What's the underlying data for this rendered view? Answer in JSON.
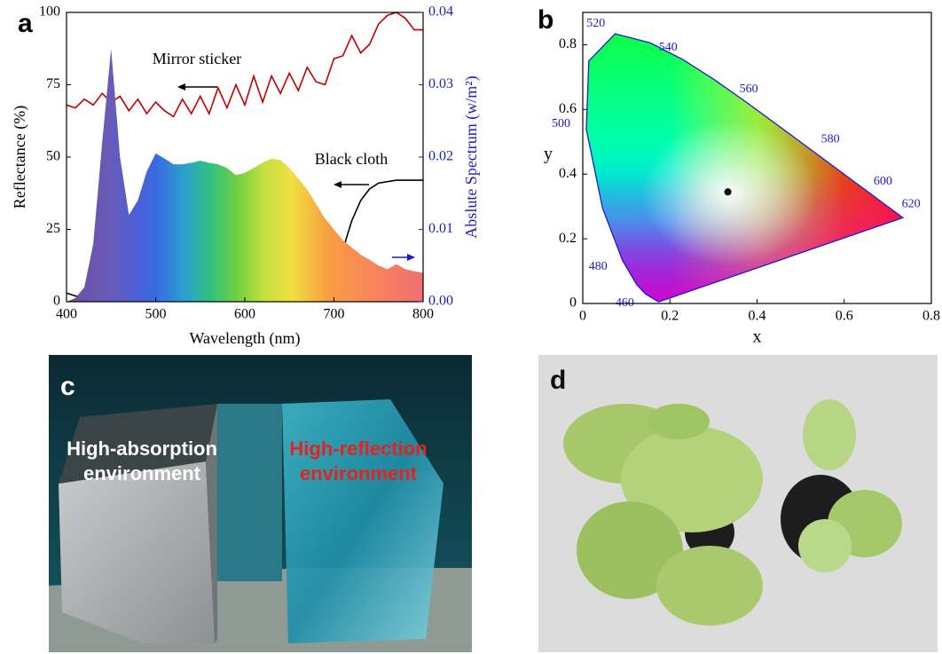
{
  "chart_data": [
    {
      "type": "line",
      "panel_label": "a",
      "x": [
        400,
        410,
        420,
        430,
        440,
        450,
        460,
        470,
        480,
        490,
        500,
        510,
        520,
        530,
        540,
        550,
        560,
        570,
        580,
        590,
        600,
        610,
        620,
        630,
        640,
        650,
        660,
        670,
        680,
        690,
        700,
        710,
        720,
        730,
        740,
        750,
        760,
        770,
        780,
        790,
        800
      ],
      "xlim": [
        400,
        800
      ],
      "xticks": [
        400,
        500,
        600,
        700,
        800
      ],
      "ylim": [
        0,
        100
      ],
      "yticks": [
        0,
        25,
        50,
        75,
        100
      ],
      "y2lim": [
        0,
        0.04
      ],
      "y2ticks": [
        {
          "value": 0,
          "label": "0.00"
        },
        0.01,
        0.02,
        0.03,
        0.04
      ],
      "xlabel": "Wavelength (nm)",
      "ylabel": "Reflectance (%)",
      "y2label": "Abslute Spectrum (w/m²)",
      "series": [
        {
          "name": "Mirror sticker",
          "color": "#c00000",
          "values": [
            68,
            67,
            70,
            68,
            72,
            69,
            71,
            66,
            70,
            65,
            69,
            66,
            64,
            70,
            65,
            71,
            65,
            74,
            67,
            75,
            68,
            78,
            69,
            78,
            72,
            79,
            73,
            81,
            76,
            75,
            84,
            85,
            92,
            86,
            89,
            96,
            99,
            100,
            98,
            94,
            94
          ]
        },
        {
          "name": "Black cloth",
          "color": "#000000",
          "values": [
            3,
            2,
            1.5,
            1.5,
            1.5,
            1.5,
            1.5,
            1.5,
            1.5,
            1.5,
            1.5,
            1.5,
            1.5,
            1.5,
            1.5,
            1.5,
            1.5,
            1.5,
            1.5,
            1.5,
            1.5,
            1.5,
            1.5,
            1.5,
            1.5,
            1.5,
            1.6,
            1.8,
            2.5,
            5,
            10,
            18,
            28,
            35,
            39,
            41,
            41.5,
            42,
            42,
            42,
            42
          ]
        },
        {
          "axis": "y2",
          "kind": "area",
          "values": [
            0,
            0.0005,
            0.002,
            0.008,
            0.022,
            0.035,
            0.02,
            0.012,
            0.014,
            0.018,
            0.0205,
            0.0198,
            0.019,
            0.019,
            0.0192,
            0.0195,
            0.0192,
            0.019,
            0.0185,
            0.0175,
            0.0178,
            0.0185,
            0.0192,
            0.0198,
            0.0196,
            0.0185,
            0.017,
            0.0155,
            0.0135,
            0.0115,
            0.01,
            0.0085,
            0.0075,
            0.0065,
            0.0058,
            0.005,
            0.0045,
            0.0052,
            0.0045,
            0.0042,
            0.004
          ]
        }
      ]
    },
    {
      "type": "chromaticity",
      "panel_label": "b",
      "xlim": [
        0,
        0.8
      ],
      "ylim": [
        0,
        0.9
      ],
      "xticks": [
        0,
        0.2,
        0.4,
        0.6,
        0.8
      ],
      "yticks": [
        0,
        0.2,
        0.4,
        0.6,
        0.8
      ],
      "xlabel": "x",
      "ylabel": "y",
      "locus": {
        "labels": [
          null,
          460,
          null,
          480,
          null,
          500,
          null,
          520,
          null,
          540,
          null,
          560,
          null,
          580,
          null,
          600,
          null,
          620,
          null
        ],
        "x": [
          0.1741,
          0.144,
          0.1241,
          0.0913,
          0.0454,
          0.0082,
          0.0139,
          0.0743,
          0.1547,
          0.2296,
          0.3016,
          0.3731,
          0.4441,
          0.5125,
          0.5752,
          0.627,
          0.6658,
          0.6915,
          0.7347
        ],
        "y": [
          0.005,
          0.0297,
          0.0578,
          0.1327,
          0.295,
          0.5384,
          0.7502,
          0.8338,
          0.8059,
          0.7543,
          0.6923,
          0.6245,
          0.5547,
          0.4866,
          0.4242,
          0.3725,
          0.334,
          0.3083,
          0.2653
        ]
      },
      "points": {
        "x": [
          0.333
        ],
        "y": [
          0.345
        ],
        "color": "#000000"
      }
    }
  ],
  "photos": [
    {
      "panel_label": "c",
      "captions": [
        {
          "lines": [
            "High-absorption",
            "environment"
          ],
          "color": "#ffffff"
        },
        {
          "lines": [
            "High-reflection",
            "environment"
          ],
          "color": "#e8211b"
        }
      ]
    },
    {
      "panel_label": "d"
    }
  ]
}
